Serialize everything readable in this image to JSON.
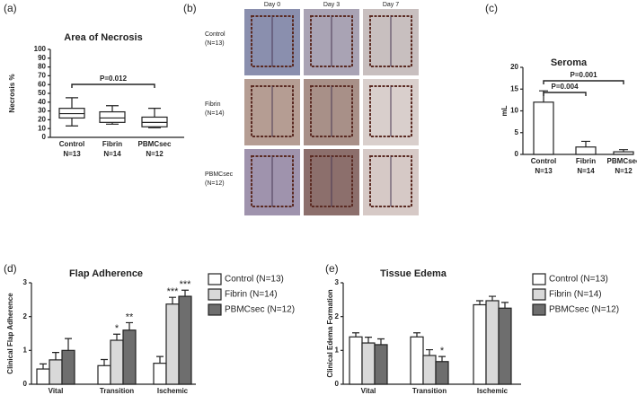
{
  "chart_data": [
    {
      "type": "box",
      "panel": "(a)",
      "title": "Area of Necrosis",
      "y_label": "Necrosis %",
      "categories": [
        "Control",
        "Fibrin",
        "PBMCsec"
      ],
      "n_labels": [
        "N=13",
        "N=14",
        "N=12"
      ],
      "boxes": [
        {
          "min": 13,
          "q1": 22,
          "median": 27,
          "q3": 33,
          "max": 45
        },
        {
          "min": 15,
          "q1": 17,
          "median": 22,
          "q3": 29,
          "max": 36
        },
        {
          "min": 11,
          "q1": 12,
          "median": 17,
          "q3": 23,
          "max": 33
        }
      ],
      "color": "#ffffff",
      "ylim": [
        0,
        100
      ],
      "yticks": [
        0,
        10,
        20,
        30,
        40,
        50,
        60,
        70,
        80,
        90,
        100
      ],
      "brackets": [
        {
          "label": "P=0.012",
          "from": "Control",
          "to": "PBMCsec"
        }
      ]
    },
    {
      "type": "bar",
      "panel": "(c)",
      "title": "Seroma",
      "y_label": "mL",
      "categories": [
        "Control",
        "Fibrin",
        "PBMCsec"
      ],
      "n_labels": [
        "N=13",
        "N=14",
        "N=12"
      ],
      "values": [
        12,
        1.7,
        0.6
      ],
      "errors": [
        2.6,
        1.3,
        0.5
      ],
      "color": "#ffffff",
      "ylim": [
        0,
        20
      ],
      "yticks": [
        0,
        5,
        10,
        15,
        20
      ],
      "brackets": [
        {
          "label": "P=0.004",
          "from": "Control",
          "to": "Fibrin"
        },
        {
          "label": "P=0.001",
          "from": "Control",
          "to": "PBMCsec"
        }
      ]
    },
    {
      "type": "grouped_bar",
      "panel": "(d)",
      "title": "Flap Adherence",
      "y_label": "Clinical Flap Adherence",
      "categories": [
        "Vital",
        "Transition",
        "Ischemic"
      ],
      "series": [
        {
          "name": "Control (N=13)",
          "color": "#ffffff",
          "values": [
            0.45,
            0.55,
            0.62
          ],
          "errors": [
            0.15,
            0.18,
            0.2
          ],
          "significance": [
            null,
            null,
            null
          ]
        },
        {
          "name": "Fibrin (N=14)",
          "color": "#d9d9d9",
          "values": [
            0.72,
            1.3,
            2.37
          ],
          "errors": [
            0.22,
            0.18,
            0.2
          ],
          "significance": [
            null,
            "*",
            "***"
          ]
        },
        {
          "name": "PBMCsec (N=12)",
          "color": "#6e6e6e",
          "values": [
            1.0,
            1.6,
            2.6
          ],
          "errors": [
            0.35,
            0.22,
            0.18
          ],
          "significance": [
            null,
            "**",
            "***"
          ]
        }
      ],
      "ylim": [
        0,
        3
      ],
      "yticks": [
        0,
        1,
        2,
        3
      ],
      "legend": "right"
    },
    {
      "type": "grouped_bar",
      "panel": "(e)",
      "title": "Tissue Edema",
      "y_label": "Clinical Edema Formation",
      "categories": [
        "Vital",
        "Transition",
        "Ischemic"
      ],
      "series": [
        {
          "name": "Control (N=13)",
          "color": "#ffffff",
          "values": [
            1.4,
            1.4,
            2.35
          ],
          "errors": [
            0.12,
            0.12,
            0.12
          ],
          "significance": [
            null,
            null,
            null
          ]
        },
        {
          "name": "Fibrin (N=14)",
          "color": "#d9d9d9",
          "values": [
            1.22,
            0.85,
            2.47
          ],
          "errors": [
            0.17,
            0.17,
            0.13
          ],
          "significance": [
            null,
            null,
            null
          ]
        },
        {
          "name": "PBMCsec (N=12)",
          "color": "#6e6e6e",
          "values": [
            1.17,
            0.67,
            2.25
          ],
          "errors": [
            0.17,
            0.15,
            0.17
          ],
          "significance": [
            null,
            "*",
            null
          ]
        }
      ],
      "ylim": [
        0,
        3
      ],
      "yticks": [
        0,
        1,
        2,
        3
      ],
      "legend": "right"
    }
  ],
  "photos": {
    "panel": "(b)",
    "columns": [
      "Day 0",
      "Day 3",
      "Day 7"
    ],
    "rows": [
      [
        "Control",
        "(N=13)"
      ],
      [
        "Fibrin",
        "(N=14)"
      ],
      [
        "PBMCsec",
        "(N=12)"
      ]
    ]
  }
}
